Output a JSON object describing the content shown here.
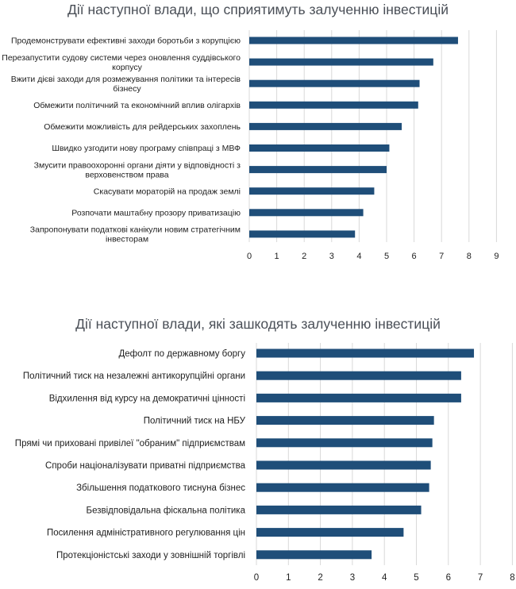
{
  "chart_data": [
    {
      "type": "bar",
      "orientation": "horizontal",
      "title": "Дії наступної влади, що сприятимуть залученню інвестицій",
      "categories": [
        "Продемонструвати ефективні заходи боротьби з корупцією",
        "Перезапустити судову системи через оновлення суддівського корпусу",
        "Вжити дієві заходи для розмежування політики та інтересів бізнесу",
        "Обмежити політичний та економічний вплив олігархів",
        "Обмежити можливість для рейдерських захоплень",
        "Швидко узгодити нову програму співпраці з МВФ",
        "Змусити правоохоронні органи діяти у відповідності з верховенством права",
        "Скасувати мораторій на продаж землі",
        "Розпочати маштабну прозору приватизацію",
        "Запропонувати податкові канікули новим стратегічним інвесторам"
      ],
      "values": [
        7.6,
        6.7,
        6.2,
        6.15,
        5.55,
        5.1,
        5.0,
        4.55,
        4.15,
        3.85
      ],
      "xlim": [
        0,
        9
      ],
      "ticks": [
        "0",
        "1",
        "2",
        "3",
        "4",
        "5",
        "6",
        "7",
        "8",
        "9"
      ],
      "grid": true,
      "bar_color": "#1f4e79"
    },
    {
      "type": "bar",
      "orientation": "horizontal",
      "title": "Дії наступної влади, які зашкодять залученню інвестицій",
      "categories": [
        "Дефолт по державному боргу",
        "Політичний тиск  на незалежні антикорупційні органи",
        "Відхилення від курсу на демократичні цінності",
        "Політичний тиск на НБУ",
        "Прямі чи приховані привілеї \"обраним\" підприємствам",
        "Спроби націоналізувати приватні підприємства",
        "Збільшення податкового тиснуна бізнес",
        "Безвідповідальна фіскальна політика",
        "Посилення адміністративного регулювання цін",
        "Протекціоністські заходи у зовнішній торгівлі"
      ],
      "values": [
        6.8,
        6.4,
        6.4,
        5.55,
        5.5,
        5.45,
        5.4,
        5.15,
        4.6,
        3.6
      ],
      "xlim": [
        0,
        8
      ],
      "ticks": [
        "0",
        "1",
        "2",
        "3",
        "4",
        "5",
        "6",
        "7",
        "8"
      ],
      "grid": true,
      "bar_color": "#1f4e79"
    }
  ]
}
